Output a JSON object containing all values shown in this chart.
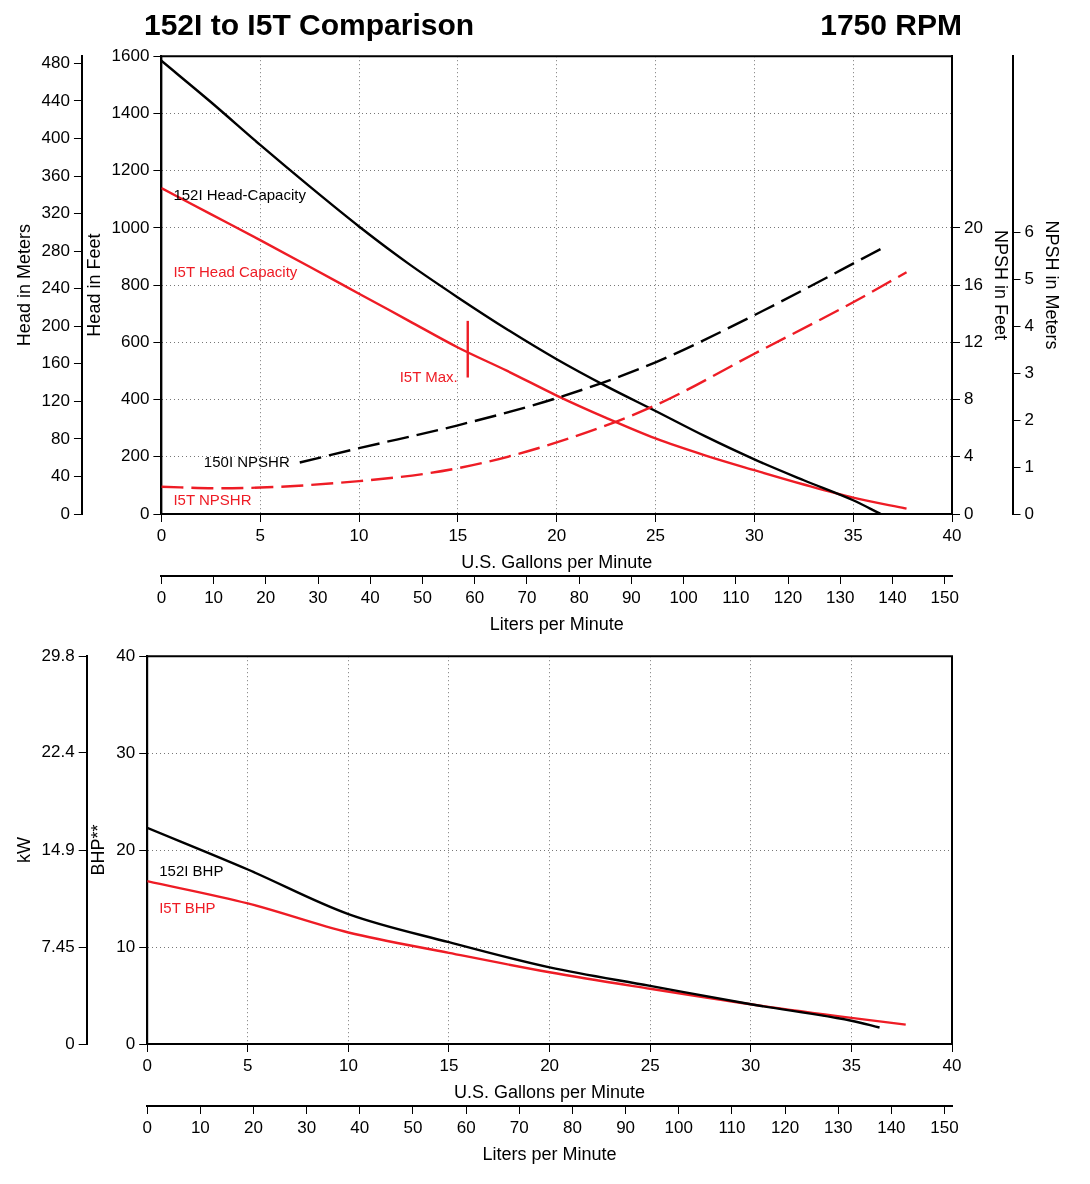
{
  "chart_data": [
    {
      "type": "line",
      "title": "152I to I5T Comparison",
      "subtitle": "1750 RPM",
      "xlabel": "U.S. Gallons per Minute",
      "x2label": "Liters per Minute",
      "ylabel": "Head in Feet",
      "y2label": "Head in Meters",
      "xlim": [
        0,
        40
      ],
      "xticks": [
        0,
        5,
        10,
        15,
        20,
        25,
        30,
        35,
        40
      ],
      "x2lim": [
        0,
        151.4
      ],
      "x2ticks": [
        0,
        10,
        20,
        30,
        40,
        50,
        60,
        70,
        80,
        90,
        100,
        110,
        120,
        130,
        140,
        150
      ],
      "ylim": [
        0,
        1600
      ],
      "yticks": [
        0,
        200,
        400,
        600,
        800,
        1000,
        1200,
        1400,
        1600
      ],
      "y2lim": [
        0,
        487.7
      ],
      "y2ticks": [
        0,
        40,
        80,
        120,
        160,
        200,
        240,
        280,
        320,
        360,
        400,
        440,
        480
      ],
      "grid": true,
      "series": [
        {
          "name": "152I Head-Capacity",
          "color": "#000000",
          "x": [
            0,
            2.5,
            5,
            7.5,
            10,
            12.5,
            15,
            17.5,
            20,
            22.5,
            25,
            27.5,
            30,
            32.5,
            35,
            36.4
          ],
          "values": [
            1584,
            1440,
            1290,
            1145,
            1005,
            875,
            757,
            645,
            541,
            447,
            360,
            272,
            191,
            118,
            48,
            0
          ]
        },
        {
          "name": "I5T Head Capacity",
          "color": "#ee1c25",
          "x": [
            0,
            2.5,
            5,
            7.5,
            10,
            12.5,
            15,
            17.5,
            20,
            22.5,
            25,
            27.5,
            30,
            32.5,
            35,
            37.7
          ],
          "values": [
            1139,
            1048,
            957,
            864,
            770,
            676,
            582,
            500,
            414,
            336,
            264,
            205,
            153,
            103,
            57,
            19
          ]
        },
        {
          "name": "I5T Max.",
          "color": "#ee1c25",
          "x": [
            15.5,
            15.5
          ],
          "values": [
            477,
            675
          ]
        }
      ]
    },
    {
      "type": "line",
      "ylabel": "NPSH in Feet",
      "y2label": "NPSH in Meters",
      "tick_labels": "y",
      "xlim": [
        0,
        40
      ],
      "ylim": [
        0,
        32
      ],
      "yticks": [
        0,
        4,
        8,
        12,
        16,
        20
      ],
      "y2lim": [
        0,
        9.75
      ],
      "y2ticks": [
        0,
        1,
        2,
        3,
        4,
        5,
        6
      ],
      "series": [
        {
          "name": "150I NPSHR",
          "color": "#000000",
          "line_style": "dashed",
          "x": [
            7,
            10,
            15,
            20,
            25,
            30,
            36.5
          ],
          "values": [
            3.6,
            4.6,
            6.2,
            8.1,
            10.6,
            13.9,
            18.6
          ]
        },
        {
          "name": "I5T NPSHR",
          "color": "#ee1c25",
          "line_style": "dashed",
          "x": [
            0,
            3,
            10,
            15,
            20,
            25,
            30,
            35,
            37.7
          ],
          "values": [
            1.9,
            1.8,
            2.3,
            3.2,
            5.0,
            7.6,
            11.2,
            14.8,
            16.9
          ]
        }
      ]
    },
    {
      "type": "line",
      "xlabel": "U.S. Gallons per Minute",
      "x2label": "Liters per Minute",
      "ylabel": "BHP**",
      "y2label": "kW",
      "xlim": [
        0,
        40
      ],
      "xticks": [
        0,
        5,
        10,
        15,
        20,
        25,
        30,
        35,
        40
      ],
      "x2lim": [
        0,
        151.4
      ],
      "x2ticks": [
        0,
        10,
        20,
        30,
        40,
        50,
        60,
        70,
        80,
        90,
        100,
        110,
        120,
        130,
        140,
        150
      ],
      "ylim": [
        0,
        40
      ],
      "yticks": [
        0,
        10,
        20,
        30,
        40
      ],
      "y2lim": [
        0,
        29.83
      ],
      "y2ticks": [
        0,
        7.45,
        14.9,
        22.4,
        29.8
      ],
      "grid": true,
      "series": [
        {
          "name": "152I BHP",
          "color": "#000000",
          "x": [
            0,
            5,
            10,
            15,
            20,
            25,
            30,
            35,
            36.4
          ],
          "values": [
            22.3,
            18.0,
            13.4,
            10.5,
            7.9,
            6.0,
            4.1,
            2.4,
            1.7
          ]
        },
        {
          "name": "I5T BHP",
          "color": "#ee1c25",
          "x": [
            0,
            5,
            10,
            15,
            20,
            25,
            30,
            35,
            37.7
          ],
          "values": [
            16.8,
            14.5,
            11.5,
            9.4,
            7.4,
            5.7,
            4.1,
            2.7,
            2.0
          ]
        }
      ]
    }
  ]
}
